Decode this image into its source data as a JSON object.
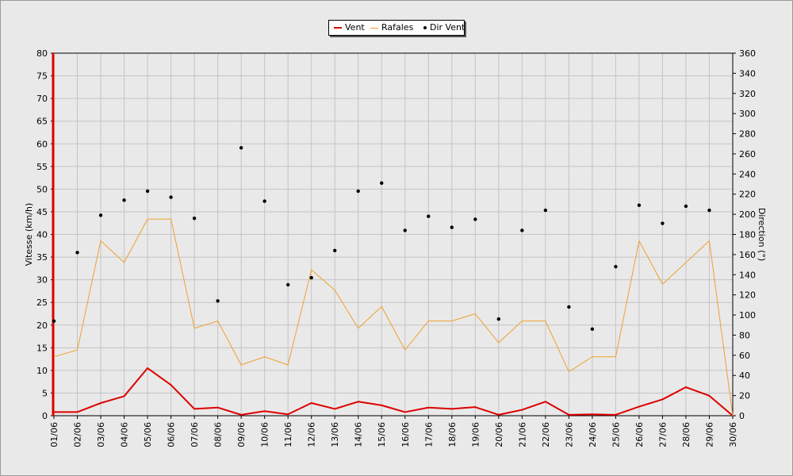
{
  "chart_data": {
    "type": "line",
    "categories": [
      "01/06",
      "02/06",
      "03/06",
      "04/06",
      "05/06",
      "06/06",
      "07/06",
      "08/06",
      "09/06",
      "10/06",
      "11/06",
      "12/06",
      "13/06",
      "14/06",
      "15/06",
      "16/06",
      "17/06",
      "18/06",
      "19/06",
      "20/06",
      "21/06",
      "22/06",
      "23/06",
      "24/06",
      "25/06",
      "26/06",
      "27/06",
      "28/06",
      "29/06",
      "30/06"
    ],
    "series": [
      {
        "name": "Vent",
        "axis": "left",
        "type": "line",
        "color": "#dd0000",
        "values": [
          0.8,
          0.8,
          2.8,
          4.3,
          10.5,
          6.8,
          1.5,
          1.8,
          0.2,
          1.0,
          0.3,
          2.8,
          1.5,
          3.1,
          2.3,
          0.8,
          1.8,
          1.5,
          1.9,
          0.2,
          1.3,
          3.1,
          0.2,
          0.3,
          0.2,
          2.0,
          3.6,
          6.3,
          4.4,
          0.0
        ]
      },
      {
        "name": "Rafales",
        "axis": "left",
        "type": "line",
        "color": "#f0a030",
        "values": [
          13.0,
          14.5,
          38.6,
          33.8,
          43.4,
          43.4,
          19.3,
          20.9,
          11.2,
          13.0,
          11.2,
          32.2,
          27.7,
          19.3,
          24.1,
          14.5,
          20.9,
          20.9,
          22.5,
          16.1,
          20.9,
          20.9,
          9.7,
          13.0,
          13.0,
          38.6,
          29.0,
          33.8,
          38.6,
          0.0
        ]
      },
      {
        "name": "Dir Vent",
        "axis": "right",
        "type": "scatter",
        "color": "#000000",
        "values": [
          94,
          162,
          199,
          214,
          223,
          217,
          196,
          114,
          266,
          213,
          130,
          137,
          164,
          223,
          231,
          184,
          198,
          187,
          195,
          96,
          184,
          204,
          108,
          86,
          148,
          209,
          191,
          208,
          204,
          null
        ]
      }
    ],
    "y_left": {
      "label": "Vitesse (km/h)",
      "min": 0,
      "max": 80,
      "step": 5
    },
    "y_right": {
      "label": "Direction (°)",
      "min": 0,
      "max": 360,
      "step": 20
    },
    "grid": true,
    "legend_position": "top-center"
  },
  "legend": {
    "vent_label": "Vent",
    "rafales_label": "Rafales",
    "dir_label": "Dir Vent"
  }
}
